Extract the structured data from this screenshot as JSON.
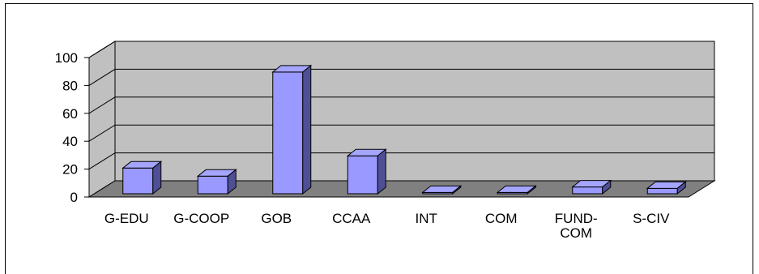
{
  "chart_data": {
    "type": "bar",
    "style": "3d-column",
    "categories": [
      "G-EDU",
      "G-COOP",
      "GOB",
      "CCAA",
      "INT",
      "COM",
      "FUND-\nCOM",
      "S-CIV"
    ],
    "values": [
      19,
      13,
      90,
      28,
      1,
      1,
      5,
      4
    ],
    "ylim": [
      0,
      100
    ],
    "yticks": [
      0,
      20,
      40,
      60,
      80,
      100
    ],
    "grid": true,
    "legend": "none",
    "colors": {
      "bar_front": "#9999ff",
      "bar_top": "#a5a5ff",
      "bar_side": "#4f4f96",
      "back_wall": "#c0c0c0",
      "side_wall": "#c0c0c0",
      "floor": "#808080",
      "grid": "#000000"
    }
  }
}
